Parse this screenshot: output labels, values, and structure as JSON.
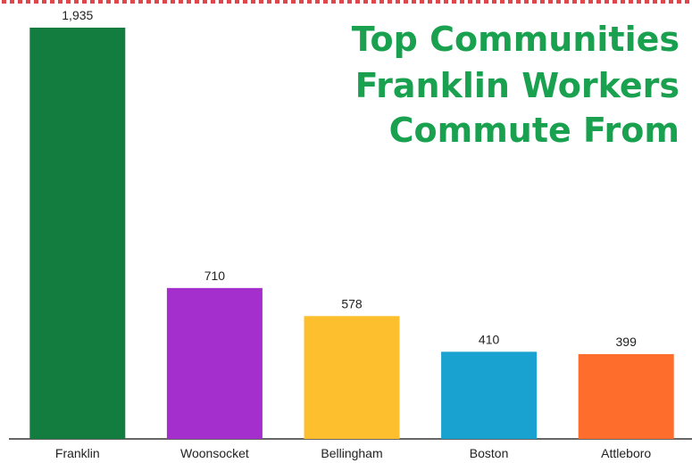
{
  "chart_data": {
    "type": "bar",
    "title_lines": [
      "Top Communities",
      "Franklin Workers",
      "Commute From"
    ],
    "categories": [
      "Franklin",
      "Woonsocket",
      "Bellingham",
      "Boston",
      "Attleboro"
    ],
    "values": [
      1935,
      710,
      578,
      410,
      399
    ],
    "value_labels": [
      "1,935",
      "710",
      "578",
      "410",
      "399"
    ],
    "colors": [
      "#127d3f",
      "#a52fcc",
      "#fdbf2d",
      "#19a1cf",
      "#ff6d2d"
    ],
    "ylim": [
      0,
      1935
    ],
    "grid": false,
    "legend": "none"
  },
  "colors": {
    "title": "#1aa150",
    "top_border": "#e0474c",
    "axis": "#333333"
  }
}
